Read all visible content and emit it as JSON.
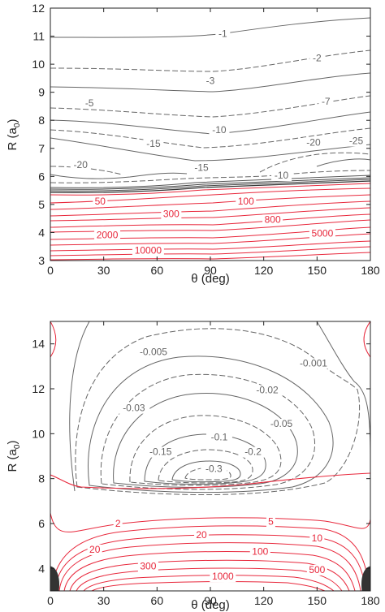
{
  "chart_data": [
    {
      "type": "contour",
      "xlabel": "θ (deg)",
      "ylabel": "R (a0)",
      "xlim": [
        0,
        180
      ],
      "ylim": [
        3,
        12
      ],
      "xticks": [
        0,
        30,
        60,
        90,
        120,
        150,
        180
      ],
      "yticks": [
        3,
        4,
        5,
        6,
        7,
        8,
        9,
        10,
        11,
        12
      ],
      "colors": {
        "negative": "#666666",
        "positive": "#e8283c"
      },
      "contour_labels": [
        {
          "text": "-1",
          "x": 97,
          "y": 10.97,
          "sign": "neg"
        },
        {
          "text": "-2",
          "x": 150,
          "y": 10.1,
          "sign": "neg"
        },
        {
          "text": "-3",
          "x": 90,
          "y": 9.3,
          "sign": "neg"
        },
        {
          "text": "-5",
          "x": 22,
          "y": 8.5,
          "sign": "neg"
        },
        {
          "text": "-7",
          "x": 155,
          "y": 8.55,
          "sign": "neg"
        },
        {
          "text": "-10",
          "x": 95,
          "y": 7.55,
          "sign": "neg"
        },
        {
          "text": "-15",
          "x": 58,
          "y": 7.05,
          "sign": "neg"
        },
        {
          "text": "-20",
          "x": 148,
          "y": 7.1,
          "sign": "neg"
        },
        {
          "text": "-25",
          "x": 172,
          "y": 7.15,
          "sign": "neg"
        },
        {
          "text": "-20",
          "x": 17,
          "y": 6.3,
          "sign": "neg"
        },
        {
          "text": "-15",
          "x": 85,
          "y": 6.2,
          "sign": "neg"
        },
        {
          "text": "-10",
          "x": 130,
          "y": 5.92,
          "sign": "neg"
        },
        {
          "text": "50",
          "x": 28,
          "y": 5.0,
          "sign": "pos"
        },
        {
          "text": "100",
          "x": 110,
          "y": 5.0,
          "sign": "pos"
        },
        {
          "text": "300",
          "x": 68,
          "y": 4.55,
          "sign": "pos"
        },
        {
          "text": "800",
          "x": 125,
          "y": 4.35,
          "sign": "pos"
        },
        {
          "text": "2000",
          "x": 32,
          "y": 3.8,
          "sign": "pos"
        },
        {
          "text": "5000",
          "x": 153,
          "y": 3.85,
          "sign": "pos"
        },
        {
          "text": "10000",
          "x": 55,
          "y": 3.25,
          "sign": "pos"
        }
      ]
    },
    {
      "type": "contour",
      "xlabel": "θ (deg)",
      "ylabel": "R (a0)",
      "xlim": [
        0,
        180
      ],
      "ylim": [
        3,
        15
      ],
      "xticks": [
        0,
        30,
        60,
        90,
        120,
        150,
        180
      ],
      "yticks": [
        4,
        6,
        8,
        10,
        12,
        14
      ],
      "colors": {
        "negative": "#666666",
        "positive": "#e8283c"
      },
      "contour_labels": [
        {
          "text": "-0.005",
          "x": 58,
          "y": 13.5,
          "sign": "neg"
        },
        {
          "text": "-0.001",
          "x": 148,
          "y": 13.0,
          "sign": "neg"
        },
        {
          "text": "-0.02",
          "x": 122,
          "y": 11.8,
          "sign": "neg"
        },
        {
          "text": "-0.03",
          "x": 47,
          "y": 11.0,
          "sign": "neg"
        },
        {
          "text": "-0.05",
          "x": 130,
          "y": 10.3,
          "sign": "neg"
        },
        {
          "text": "-0.1",
          "x": 95,
          "y": 9.7,
          "sign": "neg"
        },
        {
          "text": "-0.15",
          "x": 62,
          "y": 9.05,
          "sign": "neg"
        },
        {
          "text": "-0.2",
          "x": 114,
          "y": 9.05,
          "sign": "neg"
        },
        {
          "text": "-0.3",
          "x": 92,
          "y": 8.3,
          "sign": "neg"
        },
        {
          "text": "2",
          "x": 38,
          "y": 5.85,
          "sign": "pos"
        },
        {
          "text": "5",
          "x": 124,
          "y": 5.95,
          "sign": "pos"
        },
        {
          "text": "20",
          "x": 85,
          "y": 5.35,
          "sign": "pos"
        },
        {
          "text": "10",
          "x": 150,
          "y": 5.2,
          "sign": "pos"
        },
        {
          "text": "20",
          "x": 25,
          "y": 4.7,
          "sign": "pos"
        },
        {
          "text": "100",
          "x": 118,
          "y": 4.6,
          "sign": "pos"
        },
        {
          "text": "300",
          "x": 55,
          "y": 3.95,
          "sign": "pos"
        },
        {
          "text": "500",
          "x": 150,
          "y": 3.8,
          "sign": "pos"
        },
        {
          "text": "1000",
          "x": 97,
          "y": 3.5,
          "sign": "pos"
        }
      ]
    }
  ]
}
